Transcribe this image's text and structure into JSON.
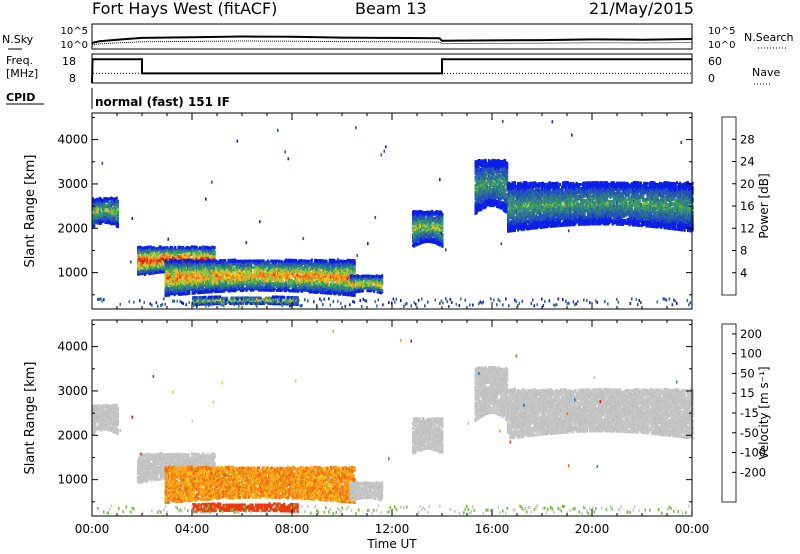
{
  "header": {
    "station": "Fort Hays West (fitACF)",
    "beam": "Beam 13",
    "date": "21/May/2015"
  },
  "housekeeping": {
    "nsky_label": "N.Sky",
    "nsearch_label": "N.Search",
    "freq_label_1": "Freq.",
    "freq_label_2": "[MHz]",
    "nave_label": "Nave",
    "cpid_label": "CPID",
    "noise_ticks": [
      "10^5",
      "10^0"
    ],
    "noise_right_ticks": [
      "10^5",
      "10^0"
    ],
    "freq_ticks": [
      "18",
      "8"
    ],
    "nave_ticks": [
      "60",
      "0"
    ],
    "cpid_text": "normal (fast) 151 IF",
    "noise_series": [
      {
        "x": 0.0,
        "y": 1.4
      },
      {
        "x": 0.3,
        "y": 1.9
      },
      {
        "x": 1.0,
        "y": 2.3
      },
      {
        "x": 2.0,
        "y": 2.8
      },
      {
        "x": 4.0,
        "y": 3.0
      },
      {
        "x": 6.0,
        "y": 3.2
      },
      {
        "x": 8.0,
        "y": 3.1
      },
      {
        "x": 10.0,
        "y": 2.9
      },
      {
        "x": 12.0,
        "y": 2.8
      },
      {
        "x": 13.9,
        "y": 2.7
      },
      {
        "x": 14.0,
        "y": 2.0
      },
      {
        "x": 16.0,
        "y": 2.1
      },
      {
        "x": 18.0,
        "y": 2.2
      },
      {
        "x": 20.0,
        "y": 2.4
      },
      {
        "x": 22.0,
        "y": 2.3
      },
      {
        "x": 24.0,
        "y": 2.5
      }
    ],
    "freq_series": [
      {
        "x": 0.0,
        "y": 8
      },
      {
        "x": 0.02,
        "y": 16.2
      },
      {
        "x": 2.0,
        "y": 16.2
      },
      {
        "x": 2.0,
        "y": 11.3
      },
      {
        "x": 14.0,
        "y": 11.3
      },
      {
        "x": 14.0,
        "y": 16.2
      },
      {
        "x": 24.0,
        "y": 16.2
      }
    ],
    "nave_level": 11
  },
  "colors": {
    "power_scale": [
      "#0a1fe6",
      "#2352b8",
      "#2f7a86",
      "#3a9e62",
      "#8cc63e",
      "#f2c01e",
      "#f59a1c",
      "#f06a12",
      "#e83010",
      "#ea0e0e"
    ],
    "velocity_scale": [
      "#ea0e0e",
      "#f0380e",
      "#f56a10",
      "#f7a11a",
      "#f4c81e",
      "#c8c8c8",
      "#c0c0c0",
      "#6cc43a",
      "#35a55a",
      "#2a6e9e",
      "#1a3cbe"
    ]
  },
  "chart_data": [
    {
      "type": "heatmap",
      "title": "",
      "xlabel": "",
      "ylabel": "Slant Range [km]",
      "xlim": [
        0,
        24
      ],
      "ylim": [
        180,
        4600
      ],
      "yticks": [
        1000,
        2000,
        3000,
        4000
      ],
      "colorbar": {
        "label": "Power [dB]",
        "range": [
          0,
          32
        ],
        "ticks": [
          4,
          8,
          12,
          16,
          20,
          24,
          28
        ]
      },
      "regions": [
        {
          "t0": 0.0,
          "t1": 1.0,
          "r0": 2000,
          "r1": 2650,
          "pk": 0.45
        },
        {
          "t0": 1.8,
          "t1": 4.9,
          "r0": 900,
          "r1": 1550,
          "pk": 0.85
        },
        {
          "t0": 2.9,
          "t1": 10.5,
          "r0": 450,
          "r1": 1250,
          "pk": 0.7
        },
        {
          "t0": 4.0,
          "t1": 8.2,
          "r0": 250,
          "r1": 420,
          "pk": 0.55
        },
        {
          "t0": 10.3,
          "t1": 11.6,
          "r0": 500,
          "r1": 900,
          "pk": 0.6
        },
        {
          "t0": 12.8,
          "t1": 14.0,
          "r0": 1550,
          "r1": 2350,
          "pk": 0.45
        },
        {
          "t0": 15.3,
          "t1": 16.6,
          "r0": 2300,
          "r1": 3500,
          "pk": 0.35
        },
        {
          "t0": 16.6,
          "t1": 24.0,
          "r0": 1900,
          "r1": 3000,
          "pk": 0.35
        }
      ],
      "scatter_density": 0.018
    },
    {
      "type": "heatmap",
      "title": "",
      "xlabel": "Time UT",
      "ylabel": "Slant Range [km]",
      "xlim": [
        0,
        24
      ],
      "ylim": [
        180,
        4600
      ],
      "yticks": [
        1000,
        2000,
        3000,
        4000
      ],
      "xticks": [
        "00:00",
        "04:00",
        "08:00",
        "12:00",
        "16:00",
        "20:00",
        "00:00"
      ],
      "colorbar": {
        "label": "Velocity [m s⁻¹]",
        "range": [
          -250,
          250
        ],
        "ticks": [
          "-200",
          "-100",
          "-50",
          "-15",
          "15",
          "50",
          "100",
          "200"
        ]
      },
      "regions": [
        {
          "t0": 0.0,
          "t1": 1.0,
          "r0": 2000,
          "r1": 2650,
          "v": 0
        },
        {
          "t0": 1.8,
          "t1": 4.9,
          "r0": 900,
          "r1": 1550,
          "v": 0
        },
        {
          "t0": 2.9,
          "t1": 10.5,
          "r0": 450,
          "r1": 1250,
          "v": -35
        },
        {
          "t0": 4.0,
          "t1": 8.2,
          "r0": 250,
          "r1": 420,
          "v": -120
        },
        {
          "t0": 10.3,
          "t1": 11.6,
          "r0": 500,
          "r1": 900,
          "v": 0
        },
        {
          "t0": 12.8,
          "t1": 14.0,
          "r0": 1550,
          "r1": 2350,
          "v": 0
        },
        {
          "t0": 15.3,
          "t1": 16.6,
          "r0": 2300,
          "r1": 3500,
          "v": 0
        },
        {
          "t0": 16.6,
          "t1": 24.0,
          "r0": 1900,
          "r1": 3000,
          "v": 0
        }
      ],
      "scatter_density": 0.018
    }
  ]
}
